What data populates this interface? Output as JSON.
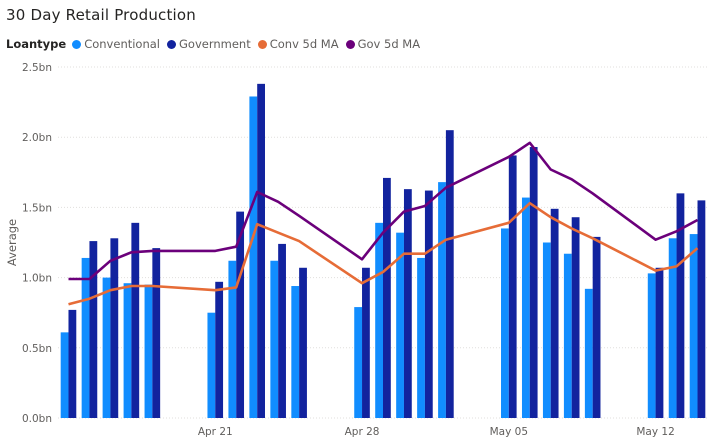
{
  "chart_data": {
    "type": "bar",
    "title": "30 Day Retail Production",
    "legend_title": "Loantype",
    "ylabel": "Average",
    "xlabel": "",
    "ylim": [
      0,
      2.5
    ],
    "y_ticks": [
      "0.0bn",
      "0.5bn",
      "1.0bn",
      "1.5bn",
      "2.0bn",
      "2.5bn"
    ],
    "x_ticks": [
      {
        "label": "Apr 21",
        "day": 7
      },
      {
        "label": "Apr 28",
        "day": 14
      },
      {
        "label": "May 05",
        "day": 21
      },
      {
        "label": "May 12",
        "day": 28
      }
    ],
    "legend_position": "top-left",
    "grid": true,
    "x_days": [
      0,
      1,
      2,
      3,
      4,
      5,
      6,
      7,
      8,
      9,
      10,
      11,
      12,
      13,
      14,
      15,
      16,
      17,
      18,
      19,
      20,
      21,
      22,
      23,
      24,
      25,
      26,
      27,
      28,
      29,
      30
    ],
    "series": [
      {
        "name": "Conventional",
        "type": "bar",
        "color": "#118DFF",
        "values": [
          0.61,
          1.14,
          1.0,
          0.96,
          0.95,
          null,
          null,
          0.75,
          1.12,
          2.29,
          1.12,
          0.94,
          null,
          null,
          0.79,
          1.39,
          1.32,
          1.14,
          1.68,
          null,
          null,
          1.35,
          1.57,
          1.25,
          1.17,
          0.92,
          null,
          null,
          1.03,
          1.28,
          1.31
        ]
      },
      {
        "name": "Government",
        "type": "bar",
        "color": "#12239E",
        "values": [
          0.77,
          1.26,
          1.28,
          1.39,
          1.21,
          null,
          null,
          0.97,
          1.47,
          2.38,
          1.24,
          1.07,
          null,
          null,
          1.07,
          1.71,
          1.63,
          1.62,
          2.05,
          null,
          null,
          1.87,
          1.93,
          1.49,
          1.43,
          1.29,
          null,
          null,
          1.07,
          1.6,
          1.55
        ]
      },
      {
        "name": "Conv 5d MA",
        "type": "line",
        "color": "#E66C37",
        "values": [
          0.81,
          0.85,
          0.91,
          0.94,
          0.94,
          null,
          null,
          0.91,
          0.93,
          1.38,
          1.32,
          1.26,
          null,
          null,
          0.96,
          1.04,
          1.17,
          1.17,
          1.27,
          null,
          null,
          1.39,
          1.53,
          1.43,
          1.35,
          1.28,
          null,
          null,
          1.05,
          1.08,
          1.21
        ]
      },
      {
        "name": "Gov 5d MA",
        "type": "line",
        "color": "#6B007B",
        "values": [
          0.99,
          0.99,
          1.12,
          1.18,
          1.19,
          null,
          null,
          1.19,
          1.22,
          1.61,
          1.54,
          1.44,
          null,
          null,
          1.13,
          1.32,
          1.47,
          1.51,
          1.64,
          null,
          null,
          1.86,
          1.96,
          1.77,
          1.7,
          1.6,
          null,
          null,
          1.27,
          1.33,
          1.41
        ]
      }
    ]
  }
}
